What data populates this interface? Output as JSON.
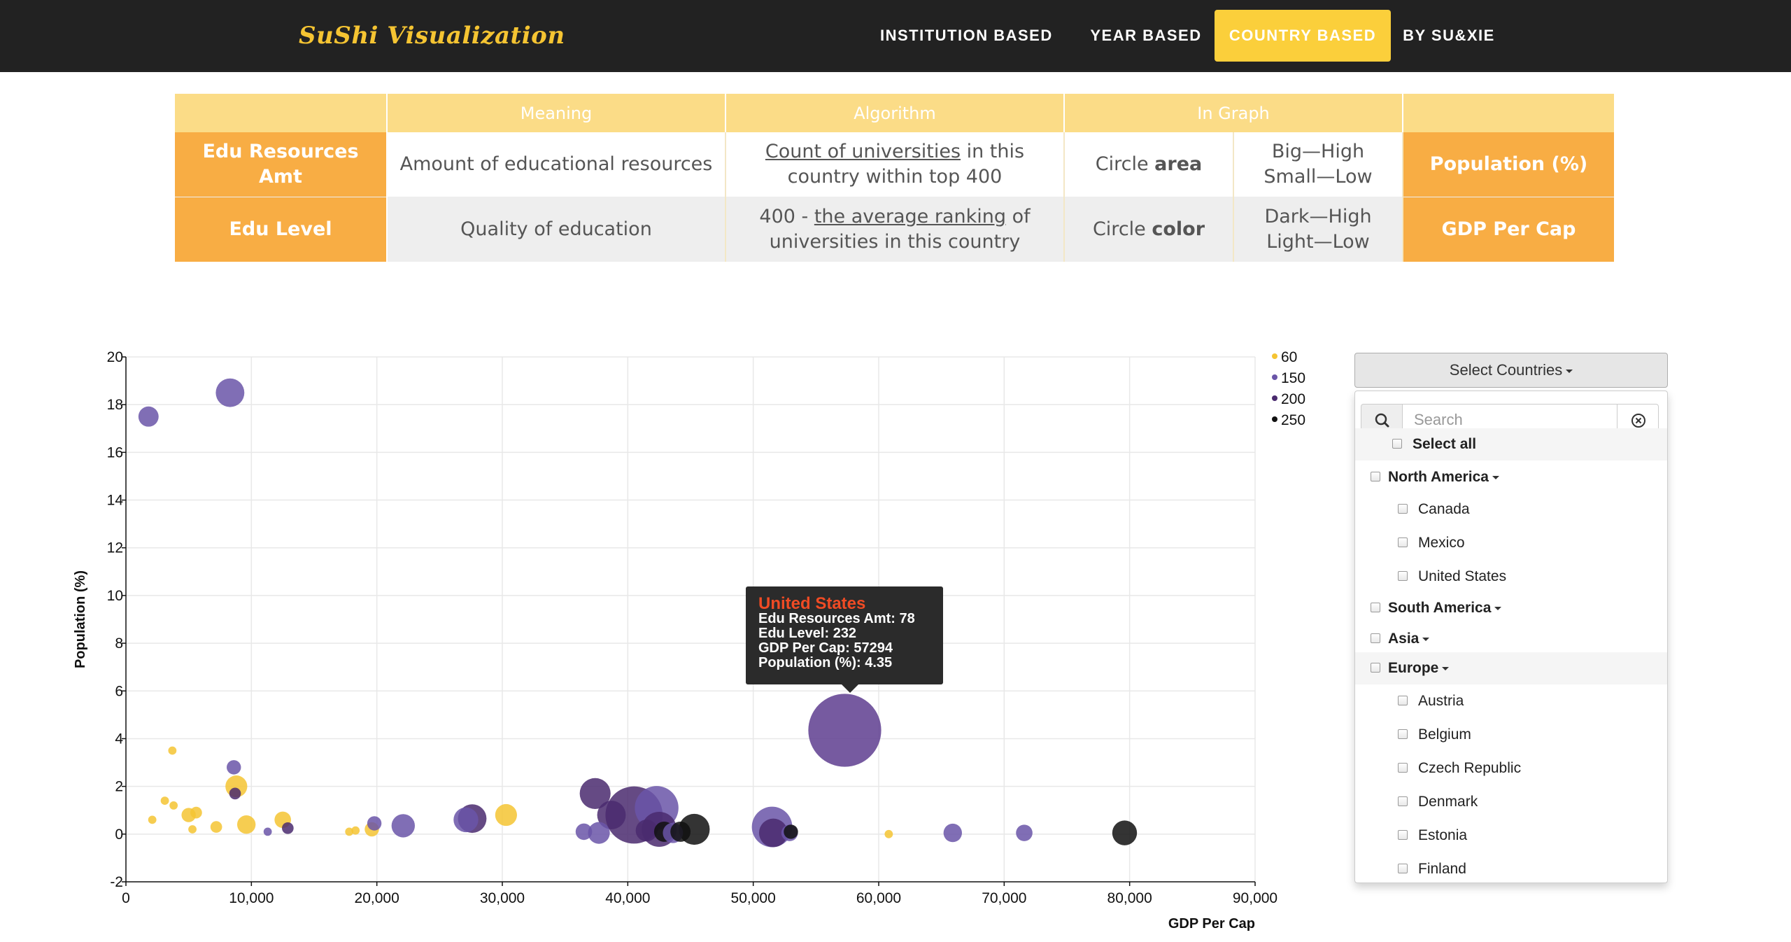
{
  "brand": "SuShi Visualization",
  "nav": [
    {
      "label": "INSTITUTION BASED",
      "active": false
    },
    {
      "label": "YEAR BASED",
      "active": false
    },
    {
      "label": "COUNTRY BASED",
      "active": true
    },
    {
      "label": "BY SU&XIE",
      "active": false
    }
  ],
  "table": {
    "headers": [
      "",
      "Meaning",
      "Algorithm",
      "In Graph",
      ""
    ],
    "rows": [
      {
        "name": "Edu Resources Amt",
        "meaning": "Amount of educational resources",
        "algo_link": "Count of universities",
        "algo_rest": " in this country within top 400",
        "graph_pre": "Circle ",
        "graph_bold": "area",
        "scale_high": "Big—High",
        "scale_low": "Small—Low",
        "mapped": "Population (%)"
      },
      {
        "name": "Edu Level",
        "meaning": "Quality of education",
        "algo_pre": "400 - ",
        "algo_link": "the average ranking",
        "algo_rest": " of universities in this country",
        "graph_pre": "Circle ",
        "graph_bold": "color",
        "scale_high": "Dark—High",
        "scale_low": "Light—Low",
        "mapped": "GDP Per Cap"
      }
    ]
  },
  "chart_data": {
    "type": "scatter",
    "xlabel": "GDP Per Cap",
    "ylabel": "Population (%)",
    "xlim": [
      0,
      90000
    ],
    "ylim": [
      -2,
      20
    ],
    "xticks": [
      0,
      10000,
      20000,
      30000,
      40000,
      50000,
      60000,
      70000,
      80000,
      90000
    ],
    "xtick_labels": [
      "0",
      "10,000",
      "20,000",
      "30,000",
      "40,000",
      "50,000",
      "60,000",
      "70,000",
      "80,000",
      "90,000"
    ],
    "yticks": [
      -2,
      0,
      2,
      4,
      6,
      8,
      10,
      12,
      14,
      16,
      18,
      20
    ],
    "grid": true,
    "legend_position": "top-right",
    "legend": [
      {
        "label": "60",
        "color": "#f5c432"
      },
      {
        "label": "150",
        "color": "#6a55a8"
      },
      {
        "label": "200",
        "color": "#4a2a6e"
      },
      {
        "label": "250",
        "color": "#111111"
      }
    ],
    "size_encoding": "Edu Resources Amt",
    "color_encoding": "Edu Level",
    "points": [
      {
        "x": 1800,
        "y": 17.5,
        "amt": 6,
        "level": 150
      },
      {
        "x": 8300,
        "y": 18.5,
        "amt": 12,
        "level": 150
      },
      {
        "x": 3700,
        "y": 3.5,
        "amt": 1,
        "level": 60
      },
      {
        "x": 8600,
        "y": 2.8,
        "amt": 3,
        "level": 150
      },
      {
        "x": 8800,
        "y": 2.0,
        "amt": 7,
        "level": 60
      },
      {
        "x": 8700,
        "y": 1.7,
        "amt": 2,
        "level": 200
      },
      {
        "x": 2100,
        "y": 0.6,
        "amt": 1,
        "level": 60
      },
      {
        "x": 3100,
        "y": 1.4,
        "amt": 1,
        "level": 60
      },
      {
        "x": 3800,
        "y": 1.2,
        "amt": 1,
        "level": 60
      },
      {
        "x": 5000,
        "y": 0.8,
        "amt": 3,
        "level": 60
      },
      {
        "x": 5600,
        "y": 0.9,
        "amt": 2,
        "level": 60
      },
      {
        "x": 5300,
        "y": 0.2,
        "amt": 1,
        "level": 60
      },
      {
        "x": 7200,
        "y": 0.3,
        "amt": 2,
        "level": 60
      },
      {
        "x": 9600,
        "y": 0.4,
        "amt": 5,
        "level": 60
      },
      {
        "x": 11300,
        "y": 0.1,
        "amt": 1,
        "level": 150
      },
      {
        "x": 12500,
        "y": 0.6,
        "amt": 4,
        "level": 60
      },
      {
        "x": 12900,
        "y": 0.25,
        "amt": 2,
        "level": 200
      },
      {
        "x": 17800,
        "y": 0.1,
        "amt": 1,
        "level": 60
      },
      {
        "x": 18300,
        "y": 0.15,
        "amt": 1,
        "level": 60
      },
      {
        "x": 19600,
        "y": 0.2,
        "amt": 3,
        "level": 60
      },
      {
        "x": 19800,
        "y": 0.45,
        "amt": 3,
        "level": 150
      },
      {
        "x": 22100,
        "y": 0.35,
        "amt": 8,
        "level": 150
      },
      {
        "x": 27100,
        "y": 0.6,
        "amt": 9,
        "level": 150
      },
      {
        "x": 27600,
        "y": 0.65,
        "amt": 12,
        "level": 200
      },
      {
        "x": 30300,
        "y": 0.8,
        "amt": 7,
        "level": 60
      },
      {
        "x": 36500,
        "y": 0.1,
        "amt": 4,
        "level": 150
      },
      {
        "x": 37400,
        "y": 1.7,
        "amt": 14,
        "level": 200
      },
      {
        "x": 37700,
        "y": 0.05,
        "amt": 7,
        "level": 150
      },
      {
        "x": 38700,
        "y": 0.8,
        "amt": 12,
        "level": 200
      },
      {
        "x": 40500,
        "y": 0.8,
        "amt": 48,
        "level": 200
      },
      {
        "x": 41500,
        "y": 0.15,
        "amt": 7,
        "level": 200
      },
      {
        "x": 42300,
        "y": 1.1,
        "amt": 28,
        "level": 150
      },
      {
        "x": 42500,
        "y": 0.2,
        "amt": 18,
        "level": 200
      },
      {
        "x": 42900,
        "y": 0.1,
        "amt": 6,
        "level": 250
      },
      {
        "x": 43600,
        "y": 0.05,
        "amt": 6,
        "level": 150
      },
      {
        "x": 44200,
        "y": 0.1,
        "amt": 6,
        "level": 250
      },
      {
        "x": 45300,
        "y": 0.2,
        "amt": 14,
        "level": 250
      },
      {
        "x": 51500,
        "y": 0.3,
        "amt": 24,
        "level": 150
      },
      {
        "x": 51600,
        "y": 0.05,
        "amt": 12,
        "level": 200
      },
      {
        "x": 52900,
        "y": 0.05,
        "amt": 4,
        "level": 150
      },
      {
        "x": 53000,
        "y": 0.1,
        "amt": 3,
        "level": 250
      },
      {
        "x": 57294,
        "y": 4.35,
        "amt": 78,
        "level": 232
      },
      {
        "x": 60800,
        "y": 0.0,
        "amt": 1,
        "level": 60
      },
      {
        "x": 65900,
        "y": 0.05,
        "amt": 5,
        "level": 150
      },
      {
        "x": 71600,
        "y": 0.05,
        "amt": 4,
        "level": 150
      },
      {
        "x": 79600,
        "y": 0.05,
        "amt": 9,
        "level": 250
      }
    ]
  },
  "tooltip": {
    "country": "United States",
    "amt": "Edu Resources Amt: 78",
    "level": "Edu Level: 232",
    "gdp": "GDP Per Cap: 57294",
    "pop": "Population (%): 4.35"
  },
  "dropdown": {
    "toggle_label": "Select Countries",
    "search_placeholder": "Search",
    "items": [
      {
        "label": "Select all",
        "kind": "select-all"
      },
      {
        "label": "North America",
        "kind": "group"
      },
      {
        "label": "Canada",
        "kind": "item"
      },
      {
        "label": "Mexico",
        "kind": "item"
      },
      {
        "label": "United States",
        "kind": "item"
      },
      {
        "label": "South America",
        "kind": "group"
      },
      {
        "label": "Asia",
        "kind": "group"
      },
      {
        "label": "Europe",
        "kind": "group"
      },
      {
        "label": "Austria",
        "kind": "item"
      },
      {
        "label": "Belgium",
        "kind": "item"
      },
      {
        "label": "Czech Republic",
        "kind": "item"
      },
      {
        "label": "Denmark",
        "kind": "item"
      },
      {
        "label": "Estonia",
        "kind": "item"
      },
      {
        "label": "Finland",
        "kind": "item"
      }
    ]
  }
}
